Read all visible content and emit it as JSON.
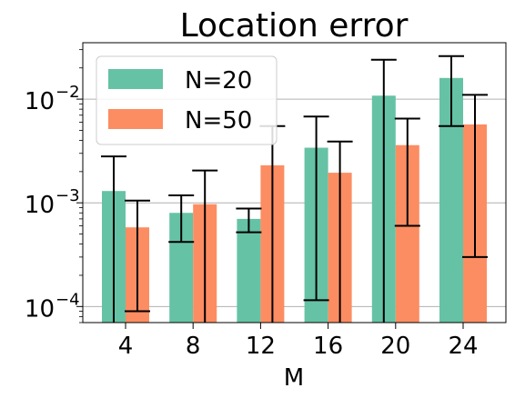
{
  "chart_data": {
    "type": "bar",
    "title": "Location error",
    "xlabel": "M",
    "ylabel": "",
    "yscale": "log",
    "ylim": [
      7e-05,
      0.035
    ],
    "grid": "y-major",
    "legend_position": "top-left",
    "categories": [
      "4",
      "8",
      "12",
      "16",
      "20",
      "24"
    ],
    "yticks": [
      {
        "value": 0.0001,
        "base": "10",
        "exp": "−4"
      },
      {
        "value": 0.001,
        "base": "10",
        "exp": "−3"
      },
      {
        "value": 0.01,
        "base": "10",
        "exp": "−2"
      }
    ],
    "series": [
      {
        "name": "N=20",
        "color": "#66c2a5",
        "values": [
          0.0013,
          0.0008,
          0.0007,
          0.0034,
          0.0108,
          0.016
        ],
        "err_low": [
          3e-05,
          0.00042,
          0.00052,
          0.000115,
          3e-05,
          0.0055
        ],
        "err_high": [
          0.0028,
          0.00118,
          0.00088,
          0.0068,
          0.024,
          0.026
        ]
      },
      {
        "name": "N=50",
        "color": "#fc8d62",
        "values": [
          0.00058,
          0.00097,
          0.0023,
          0.00195,
          0.0036,
          0.0057
        ],
        "err_low": [
          9e-05,
          3e-05,
          3e-05,
          3e-05,
          0.0006,
          0.0003
        ],
        "err_high": [
          0.00105,
          0.00205,
          0.0055,
          0.0039,
          0.0065,
          0.011
        ]
      }
    ]
  }
}
